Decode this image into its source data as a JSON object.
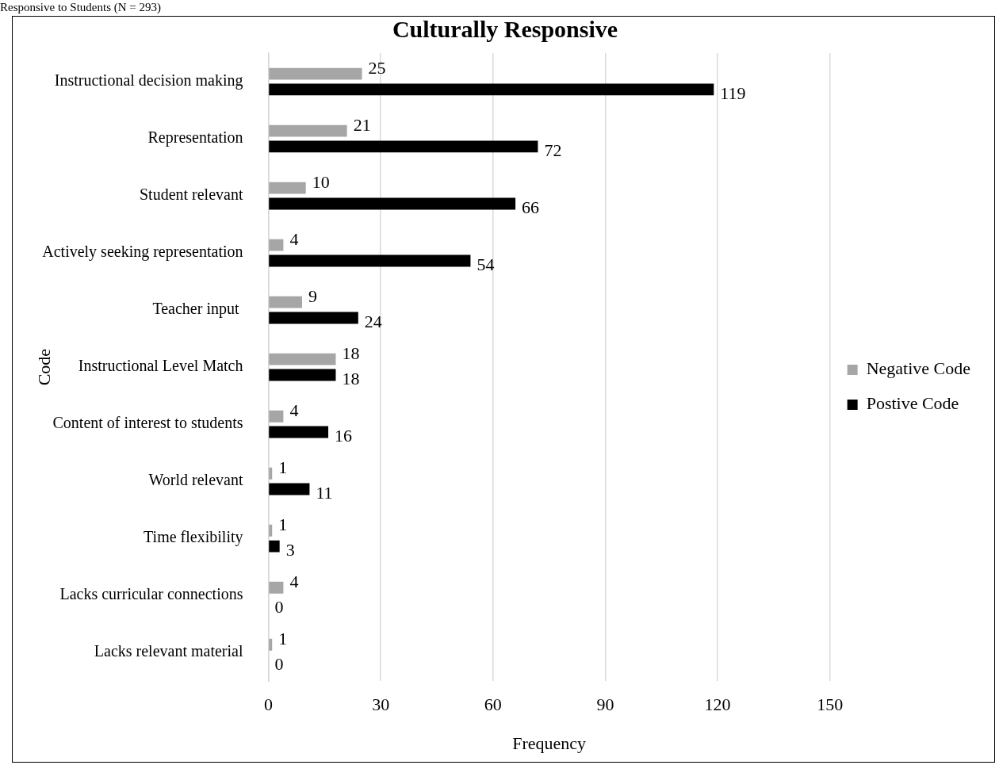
{
  "chart_data": {
    "type": "bar",
    "orientation": "horizontal",
    "title": "Culturally Responsive",
    "xlabel": "Frequency",
    "ylabel": "Code",
    "annotations": [
      "Responsive to Students (N = 293)"
    ],
    "categories": [
      "Instructional decision making",
      "Representation",
      "Student relevant",
      "Actively seeking representation",
      "Teacher input ",
      "Instructional Level Match",
      "Content of interest to students",
      "World relevant",
      "Time flexibility",
      "Lacks curricular connections",
      "Lacks relevant material"
    ],
    "series": [
      {
        "name": "Negative Code",
        "color": "#a6a6a6",
        "values": [
          25,
          21,
          10,
          4,
          9,
          18,
          4,
          1,
          1,
          4,
          1
        ]
      },
      {
        "name": "Postive Code",
        "color": "#000000",
        "values": [
          119,
          72,
          66,
          54,
          24,
          18,
          16,
          11,
          3,
          0,
          0
        ]
      }
    ],
    "xlim": [
      0,
      150
    ],
    "xticks": [
      0,
      30,
      60,
      90,
      120,
      150
    ],
    "grid": "x",
    "legend": "right",
    "data_labels": true
  }
}
